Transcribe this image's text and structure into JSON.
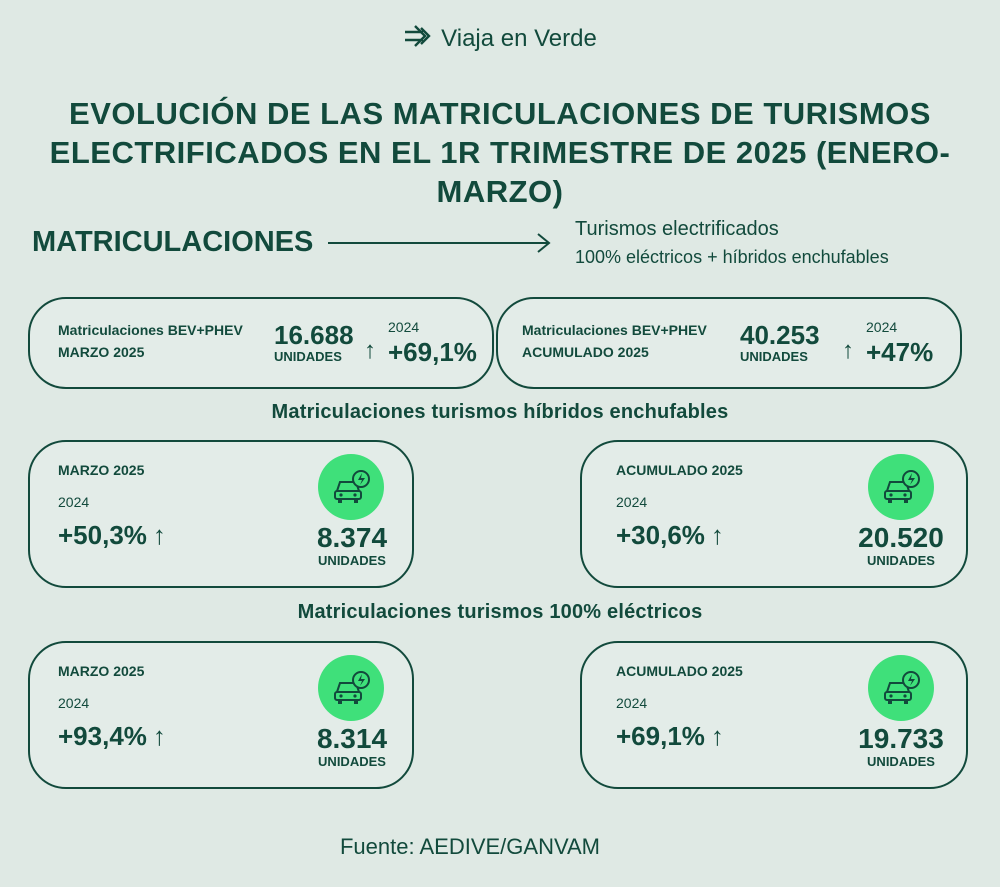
{
  "brand": {
    "name": "Viaja en Verde",
    "icon": "leaf-arrows-icon"
  },
  "title": {
    "line1": "EVOLUCIÓN DE LAS MATRICULACIONES DE TURISMOS",
    "line2": "ELECTRIFICADOS EN EL 1R TRIMESTRE DE 2025 (ENERO-MARZO)"
  },
  "section": {
    "heading": "MATRICULACIONES",
    "desc_line1": "Turismos electrificados",
    "desc_line2": "100% eléctricos + híbridos enchufables"
  },
  "top_cards": [
    {
      "label1": "Matriculaciones BEV+PHEV",
      "label2": "MARZO 2025",
      "value": "16.688",
      "units": "UNIDADES",
      "year": "2024",
      "arrow": "↑",
      "pct": "+69,1%"
    },
    {
      "label1": "Matriculaciones BEV+PHEV",
      "label2": "ACUMULADO 2025",
      "value": "40.253",
      "units": "UNIDADES",
      "year": "2024",
      "arrow": "↑",
      "pct": "+47%"
    }
  ],
  "phev": {
    "heading": "Matriculaciones turismos híbridos enchufables",
    "cards": [
      {
        "period": "MARZO 2025",
        "year": "2024",
        "pct": "+50,3%",
        "arrow": "↑",
        "value": "8.374",
        "units": "UNIDADES"
      },
      {
        "period": "ACUMULADO 2025",
        "year": "2024",
        "pct": "+30,6%",
        "arrow": "↑",
        "value": "20.520",
        "units": "UNIDADES"
      }
    ]
  },
  "bev": {
    "heading": "Matriculaciones turismos 100% eléctricos",
    "cards": [
      {
        "period": "MARZO 2025",
        "year": "2024",
        "pct": "+93,4%",
        "arrow": "↑",
        "value": "8.314",
        "units": "UNIDADES"
      },
      {
        "period": "ACUMULADO 2025",
        "year": "2024",
        "pct": "+69,1%",
        "arrow": "↑",
        "value": "19.733",
        "units": "UNIDADES"
      }
    ]
  },
  "colors": {
    "background": "#dfe9e4",
    "text": "#124a3c",
    "accent": "#3fe07a"
  },
  "source": "Fuente: AEDIVE/GANVAM"
}
